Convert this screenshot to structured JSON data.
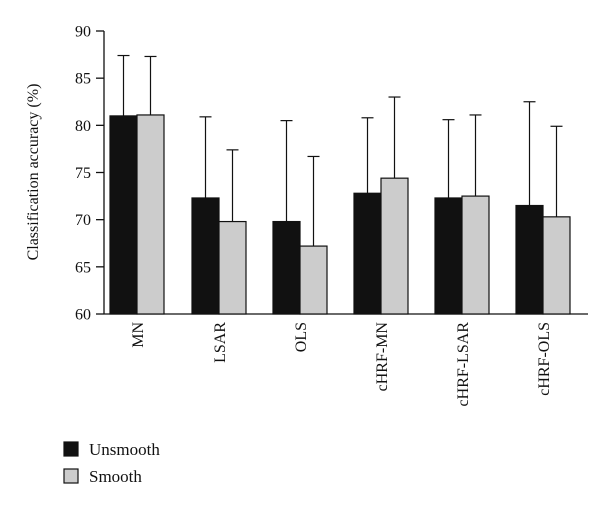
{
  "chart_data": {
    "type": "bar",
    "title": "",
    "xlabel": "",
    "ylabel": "Classification accuracy (%)",
    "ylim": [
      60,
      90
    ],
    "yticks": [
      60,
      65,
      70,
      75,
      80,
      85,
      90
    ],
    "categories": [
      "MN",
      "LSAR",
      "OLS",
      "cHRF-MN",
      "cHRF-LSAR",
      "cHRF-OLS"
    ],
    "series": [
      {
        "name": "Unsmooth",
        "color": "#111111",
        "values": [
          81.0,
          72.3,
          69.8,
          72.8,
          72.3,
          71.5
        ],
        "error": [
          6.4,
          8.6,
          10.7,
          8.0,
          8.3,
          11.0
        ]
      },
      {
        "name": "Smooth",
        "color": "#cccccc",
        "values": [
          81.1,
          69.8,
          67.2,
          74.4,
          72.5,
          70.3
        ],
        "error": [
          6.2,
          7.6,
          9.5,
          8.6,
          8.6,
          9.6
        ]
      }
    ],
    "grid": false,
    "legend": "bottom-left"
  }
}
